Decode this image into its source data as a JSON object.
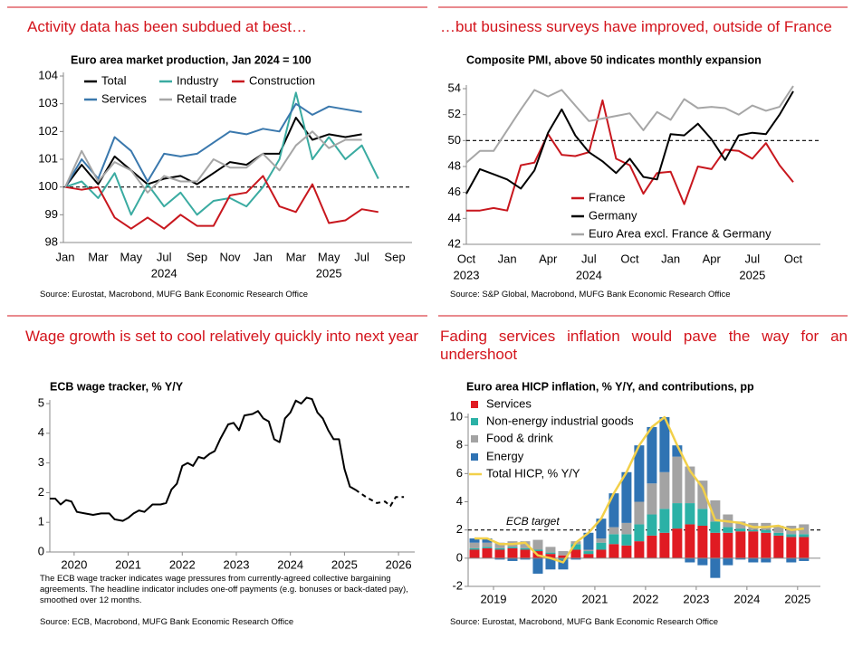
{
  "chart_data": [
    {
      "type": "line",
      "heading": "Activity data has been subdued at best…",
      "title": "Euro area market production, Jan 2024 = 100",
      "source": "Source: Eurostat, Macrobond, MUFG Bank Economic Research Office",
      "categories": [
        "Jan",
        null,
        "Mar",
        null,
        "May",
        null,
        "Jul",
        null,
        "Sep",
        null,
        "Nov",
        null,
        "Jan",
        null,
        "Mar",
        null,
        "May",
        null,
        "Jul",
        null,
        "Sep"
      ],
      "x_years": [
        null,
        null,
        null,
        null,
        null,
        null,
        "2024",
        null,
        null,
        null,
        null,
        null,
        null,
        null,
        null,
        null,
        "2025",
        null,
        null,
        null,
        null
      ],
      "ylim": [
        98,
        104
      ],
      "yticks": [
        98,
        99,
        100,
        101,
        102,
        103,
        104
      ],
      "reference_line": {
        "value": 100
      },
      "series": [
        {
          "name": "Total",
          "color": "#000000",
          "values": [
            100,
            100.8,
            100.1,
            101.1,
            100.6,
            100.1,
            100.3,
            100.4,
            100.1,
            100.5,
            100.9,
            100.8,
            101.2,
            101.2,
            102.5,
            101.7,
            101.9,
            101.8,
            101.9,
            null,
            null
          ]
        },
        {
          "name": "Industry",
          "color": "#3aaba1",
          "values": [
            100,
            100.2,
            99.6,
            100.5,
            99.0,
            100.1,
            99.3,
            99.8,
            99.0,
            99.5,
            99.6,
            99.3,
            100.0,
            101.0,
            103.4,
            101.0,
            101.8,
            101.0,
            101.5,
            100.3,
            null
          ]
        },
        {
          "name": "Construction",
          "color": "#c8171e",
          "values": [
            100,
            99.9,
            100.0,
            98.9,
            98.5,
            98.9,
            98.5,
            99.0,
            98.6,
            98.6,
            99.7,
            99.8,
            100.4,
            99.3,
            99.1,
            100.1,
            98.7,
            98.8,
            99.2,
            99.1,
            null
          ]
        },
        {
          "name": "Services",
          "color": "#3a78ad",
          "values": [
            100,
            101.0,
            100.3,
            101.8,
            101.3,
            100.2,
            101.2,
            101.1,
            101.2,
            101.6,
            102.0,
            101.9,
            102.1,
            102.0,
            103.0,
            102.6,
            102.9,
            102.8,
            102.7,
            null,
            null
          ]
        },
        {
          "name": "Retail trade",
          "color": "#a6a6a6",
          "values": [
            100,
            101.3,
            100.2,
            100.9,
            100.6,
            99.8,
            100.4,
            100.2,
            100.2,
            101.0,
            100.7,
            100.7,
            101.2,
            100.6,
            101.5,
            102.0,
            101.4,
            101.7,
            101.7,
            null,
            null
          ]
        }
      ]
    },
    {
      "type": "line",
      "heading": "…but business surveys have improved, outside of France",
      "title": "Composite PMI, above 50 indicates monthly expansion",
      "source": "Source: S&P Global, Macrobond, MUFG Bank Economic Research Office",
      "categories": [
        "Oct",
        null,
        null,
        "Jan",
        null,
        null,
        "Apr",
        null,
        null,
        "Jul",
        null,
        null,
        "Oct",
        null,
        null,
        "Jan",
        null,
        null,
        "Apr",
        null,
        null,
        "Jul",
        null,
        null,
        "Oct",
        null,
        null
      ],
      "x_years": [
        "2023",
        null,
        null,
        null,
        null,
        null,
        null,
        null,
        null,
        "2024",
        null,
        null,
        null,
        null,
        null,
        null,
        null,
        null,
        null,
        null,
        null,
        "2025",
        null,
        null,
        null,
        null,
        null
      ],
      "ylim": [
        42,
        54
      ],
      "yticks": [
        42,
        44,
        46,
        48,
        50,
        52,
        54
      ],
      "reference_line": {
        "value": 50
      },
      "series": [
        {
          "name": "France",
          "color": "#c8171e",
          "values": [
            44.6,
            44.6,
            44.8,
            44.6,
            48.1,
            48.3,
            50.5,
            48.9,
            48.8,
            49.1,
            53.1,
            48.6,
            48.1,
            45.9,
            47.5,
            47.6,
            45.1,
            48.0,
            47.8,
            49.3,
            49.2,
            48.6,
            49.8,
            48.1,
            46.8,
            null,
            null
          ]
        },
        {
          "name": "Germany",
          "color": "#000000",
          "values": [
            45.9,
            47.8,
            47.4,
            47.0,
            46.3,
            47.7,
            50.6,
            52.4,
            50.4,
            49.1,
            48.4,
            47.5,
            48.6,
            47.2,
            47.0,
            50.5,
            50.4,
            51.3,
            50.1,
            48.5,
            50.4,
            50.6,
            50.5,
            52.0,
            53.8,
            null,
            null
          ]
        },
        {
          "name": "Euro Area excl. France & Germany",
          "color": "#a6a6a6",
          "values": [
            48.3,
            49.2,
            49.2,
            50.8,
            52.4,
            53.9,
            53.4,
            53.9,
            52.7,
            51.5,
            51.7,
            51.9,
            52.1,
            50.8,
            52.2,
            51.6,
            53.2,
            52.5,
            52.6,
            52.5,
            52.0,
            52.7,
            52.3,
            52.6,
            54.2,
            null,
            null
          ]
        }
      ]
    },
    {
      "type": "line",
      "heading": "Wage growth is set to cool relatively quickly into next year",
      "title": "ECB wage tracker, % Y/Y",
      "note": "The ECB wage tracker indicates wage pressures from currently-agreed collective bargaining agreements. The headline indicator includes one-off payments (e.g. bonuses or back-dated pay), smoothed over 12 months.",
      "source": "Source: ECB, Macrobond, MUFG Bank Economic Research Office",
      "xlim": [
        2019.55,
        2026.3
      ],
      "xticks": [
        2020,
        2021,
        2022,
        2023,
        2024,
        2025,
        2026
      ],
      "ylim": [
        0,
        5
      ],
      "yticks": [
        0,
        1,
        2,
        3,
        4,
        5
      ],
      "series": [
        {
          "color": "#000000",
          "dashed": false,
          "x": [
            2019.55,
            2019.65,
            2019.75,
            2019.85,
            2019.95,
            2020.05,
            2020.2,
            2020.35,
            2020.5,
            2020.65,
            2020.75,
            2020.9,
            2021.0,
            2021.1,
            2021.2,
            2021.3,
            2021.45,
            2021.6,
            2021.7,
            2021.8,
            2021.9,
            2022.0,
            2022.1,
            2022.2,
            2022.3,
            2022.4,
            2022.5,
            2022.6,
            2022.7,
            2022.85,
            2022.95,
            2023.05,
            2023.15,
            2023.3,
            2023.4,
            2023.5,
            2023.6,
            2023.7,
            2023.8,
            2023.9,
            2024.0,
            2024.1,
            2024.2,
            2024.3,
            2024.4,
            2024.5,
            2024.6,
            2024.7,
            2024.8,
            2024.9,
            2025.0,
            2025.1,
            2025.2
          ],
          "values": [
            1.8,
            1.8,
            1.6,
            1.75,
            1.7,
            1.35,
            1.3,
            1.25,
            1.3,
            1.3,
            1.1,
            1.05,
            1.15,
            1.3,
            1.4,
            1.35,
            1.6,
            1.6,
            1.65,
            2.1,
            2.3,
            2.9,
            3.0,
            2.9,
            3.2,
            3.15,
            3.3,
            3.4,
            3.8,
            4.3,
            4.35,
            4.1,
            4.6,
            4.65,
            4.75,
            4.5,
            4.4,
            3.8,
            3.7,
            4.5,
            4.7,
            5.1,
            5.0,
            5.2,
            5.15,
            4.7,
            4.5,
            4.1,
            3.8,
            3.8,
            2.8,
            2.2,
            2.1
          ]
        },
        {
          "color": "#000000",
          "dashed": true,
          "x": [
            2025.2,
            2025.4,
            2025.6,
            2025.75,
            2025.85,
            2025.95,
            2026.1
          ],
          "values": [
            2.1,
            1.85,
            1.65,
            1.7,
            1.55,
            1.85,
            1.85
          ]
        }
      ]
    },
    {
      "type": "bar",
      "stacked": true,
      "heading": "Fading services inflation would pave the way for an undershoot",
      "title": "Euro area HICP inflation, % Y/Y, and contributions, pp",
      "source": "Source: Eurostat, Macrobond, MUFG Bank Economic Research Office",
      "xlim": [
        2019.0,
        2025.95
      ],
      "xticks": [
        {
          "value": 2019.5,
          "label": "2019"
        },
        {
          "value": 2020.5,
          "label": "2020"
        },
        {
          "value": 2021.5,
          "label": "2021"
        },
        {
          "value": 2022.5,
          "label": "2022"
        },
        {
          "value": 2023.5,
          "label": "2023"
        },
        {
          "value": 2024.5,
          "label": "2024"
        },
        {
          "value": 2025.5,
          "label": "2025"
        }
      ],
      "ylim": [
        -2,
        10
      ],
      "yticks": [
        -2,
        0,
        2,
        4,
        6,
        8,
        10
      ],
      "reference_line": {
        "value": 2,
        "label": "ECB target"
      },
      "x": [
        2019.125,
        2019.375,
        2019.625,
        2019.875,
        2020.125,
        2020.375,
        2020.625,
        2020.875,
        2021.125,
        2021.375,
        2021.625,
        2021.875,
        2022.125,
        2022.375,
        2022.625,
        2022.875,
        2023.125,
        2023.375,
        2023.625,
        2023.875,
        2024.125,
        2024.375,
        2024.625,
        2024.875,
        2025.125,
        2025.375,
        2025.625
      ],
      "series": [
        {
          "name": "Services",
          "color": "#e01b22",
          "values": [
            0.6,
            0.7,
            0.6,
            0.7,
            0.6,
            0.5,
            0.3,
            0.2,
            0.6,
            0.3,
            0.6,
            1.0,
            0.9,
            1.2,
            1.6,
            1.8,
            2.1,
            2.4,
            2.3,
            1.8,
            1.8,
            1.9,
            1.9,
            1.8,
            1.6,
            1.5,
            1.5
          ]
        },
        {
          "name": "Non-energy industrial goods",
          "color": "#2bb1a6",
          "values": [
            0.1,
            0.1,
            0.1,
            0.1,
            0.1,
            0.1,
            0.1,
            -0.1,
            0.4,
            0.2,
            0.5,
            0.7,
            0.8,
            1.2,
            1.5,
            1.7,
            1.8,
            1.5,
            1.2,
            0.8,
            0.4,
            0.2,
            0.1,
            0.2,
            0.2,
            0.2,
            0.2
          ]
        },
        {
          "name": "Food & drink",
          "color": "#a3a3a3",
          "values": [
            0.4,
            0.3,
            0.4,
            0.4,
            0.5,
            0.7,
            0.4,
            0.3,
            0.2,
            0.1,
            0.3,
            0.5,
            0.8,
            1.6,
            2.2,
            2.6,
            3.3,
            2.6,
            2.0,
            1.5,
            0.9,
            0.5,
            0.5,
            0.5,
            0.5,
            0.6,
            0.7
          ]
        },
        {
          "name": "Energy",
          "color": "#2f73b3",
          "values": [
            0.3,
            0.3,
            -0.1,
            -0.2,
            -0.1,
            -1.1,
            -0.8,
            -0.7,
            -0.1,
            1.2,
            1.4,
            2.4,
            3.6,
            4.0,
            4.0,
            3.9,
            0.8,
            -0.3,
            -0.5,
            -1.4,
            -0.5,
            -0.1,
            -0.3,
            -0.3,
            0.0,
            -0.3,
            -0.2
          ]
        },
        {
          "name": "Total HICP, % Y/Y",
          "color": "#f2d04a",
          "type": "line",
          "values": [
            1.4,
            1.4,
            1.0,
            1.0,
            1.1,
            0.2,
            0.0,
            -0.3,
            1.1,
            1.8,
            2.8,
            4.6,
            6.1,
            8.0,
            9.3,
            10.0,
            8.0,
            6.2,
            5.0,
            2.7,
            2.6,
            2.5,
            2.2,
            2.2,
            2.3,
            2.0,
            2.1
          ]
        }
      ]
    }
  ]
}
